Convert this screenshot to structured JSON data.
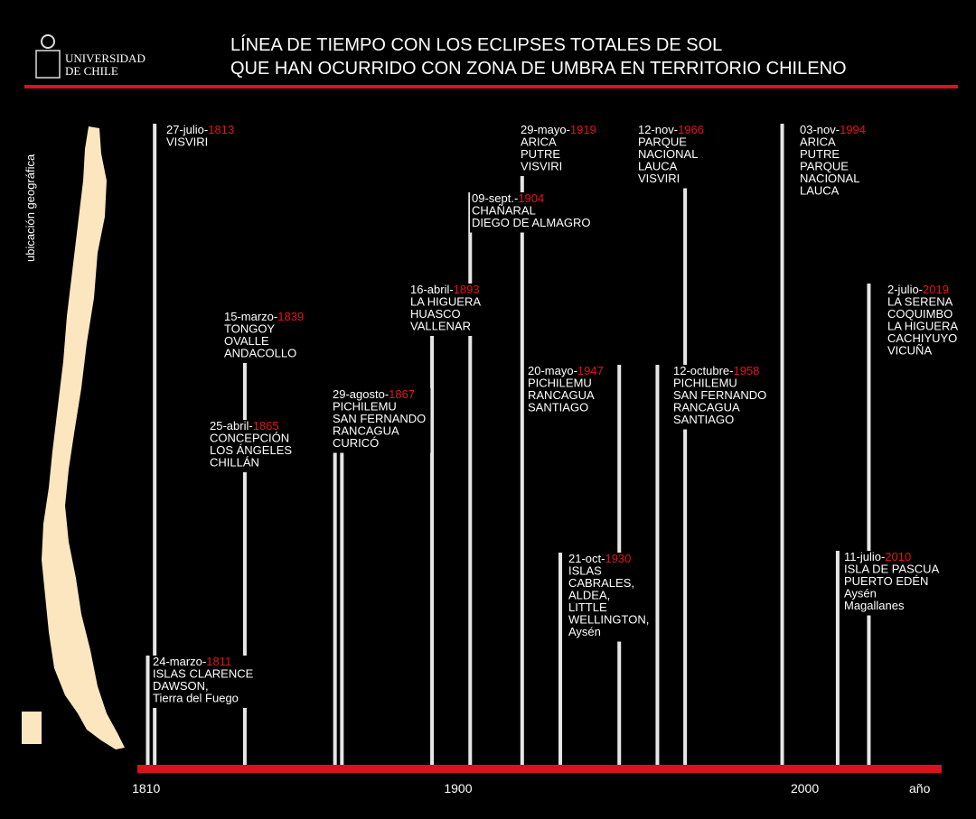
{
  "header": {
    "logo_line1": "UNIVERSIDAD",
    "logo_line2": "DE CHILE",
    "title_line1": "LÍNEA DE TIEMPO CON LOS ECLIPSES TOTALES DE SOL",
    "title_line2": "QUE HAN OCURRIDO CON ZONA DE UMBRA EN TERRITORIO CHILENO"
  },
  "side_label": "ubicación geográfica",
  "axis": {
    "xlim": [
      1808,
      2040
    ],
    "xticks": [
      1810,
      1900,
      2000
    ],
    "unit": "año"
  },
  "events": [
    {
      "date": "24-marzo-",
      "year": 1811,
      "places": [
        "ISLAS CLARENCE",
        "DAWSON,",
        "Tierra del Fuego"
      ]
    },
    {
      "date": "27-julio-",
      "year": 1813,
      "places": [
        "VISVIRI"
      ]
    },
    {
      "date": "15-marzo-",
      "year": 1839,
      "places": [
        "TONGOY",
        "OVALLE",
        "ANDACOLLO"
      ]
    },
    {
      "date": "25-abril-",
      "year": 1865,
      "places": [
        "CONCEPCIÓN",
        "LOS ÁNGELES",
        "CHILLÁN"
      ]
    },
    {
      "date": "29-agosto-",
      "year": 1867,
      "places": [
        "PICHILEMU",
        "SAN FERNANDO",
        "RANCAGUA",
        "CURICÓ"
      ]
    },
    {
      "date": "16-abril-",
      "year": 1893,
      "places": [
        "LA HIGUERA",
        "HUASCO",
        "VALLENAR"
      ]
    },
    {
      "date": "09-sept.-",
      "year": 1904,
      "places": [
        "CHAÑARAL",
        "DIEGO DE ALMAGRO"
      ]
    },
    {
      "date": "29-mayo-",
      "year": 1919,
      "places": [
        "ARICA",
        "PUTRE",
        "VISVIRI"
      ]
    },
    {
      "date": "21-oct-",
      "year": 1930,
      "places": [
        "ISLAS",
        "CABRALES,",
        "ALDEA,",
        "LITTLE",
        "WELLINGTON,",
        "Aysén"
      ]
    },
    {
      "date": "20-mayo-",
      "year": 1947,
      "places": [
        "PICHILEMU",
        "RANCAGUA",
        "SANTIAGO"
      ]
    },
    {
      "date": "12-octubre-",
      "year": 1958,
      "places": [
        "PICHILEMU",
        "SAN FERNANDO",
        "RANCAGUA",
        "SANTIAGO"
      ]
    },
    {
      "date": "12-nov-",
      "year": 1966,
      "places": [
        "PARQUE",
        "NACIONAL",
        "LAUCA",
        "VISVIRI"
      ]
    },
    {
      "date": "03-nov-",
      "year": 1994,
      "places": [
        "ARICA",
        "PUTRE",
        "PARQUE",
        "NACIONAL",
        "LAUCA"
      ]
    },
    {
      "date": "11-julio-",
      "year": 2010,
      "places": [
        "ISLA DE PASCUA",
        "PUERTO EDÉN",
        "Aysén",
        "Magallanes"
      ]
    },
    {
      "date": "2-julio-",
      "year": 2019,
      "places": [
        "LA SERENA",
        "COQUIMBO",
        "LA HIGUERA",
        "CACHIYUYO",
        "VICUÑA"
      ]
    }
  ]
}
